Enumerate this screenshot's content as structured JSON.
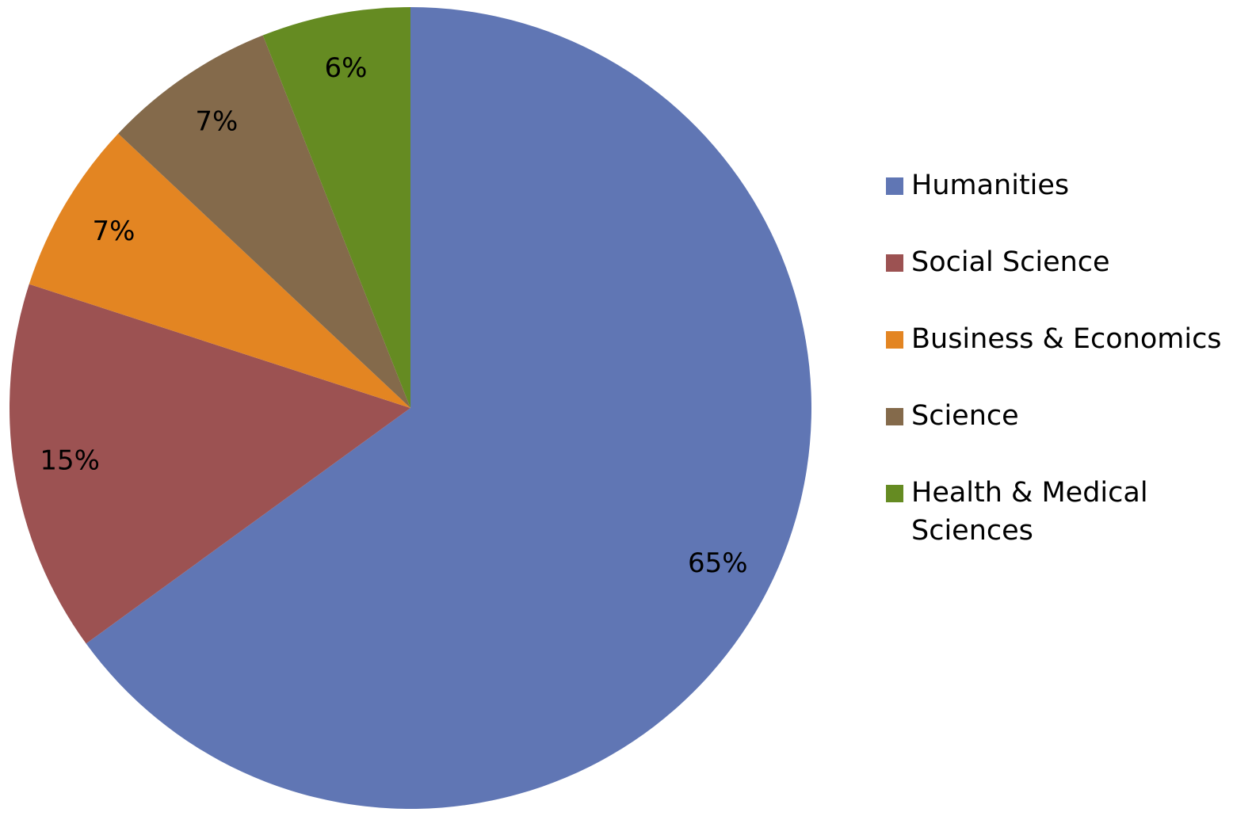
{
  "chart_data": {
    "type": "pie",
    "categories": [
      "Humanities",
      "Social Science",
      "Business & Economics",
      "Science",
      "Health & Medical Sciences"
    ],
    "values": [
      65,
      15,
      7,
      7,
      6
    ],
    "value_labels": [
      "65%",
      "15%",
      "7%",
      "7%",
      "6%"
    ],
    "colors": [
      "#6076b4",
      "#9c5252",
      "#e38522",
      "#846a4b",
      "#658b22"
    ],
    "legend": "right"
  }
}
